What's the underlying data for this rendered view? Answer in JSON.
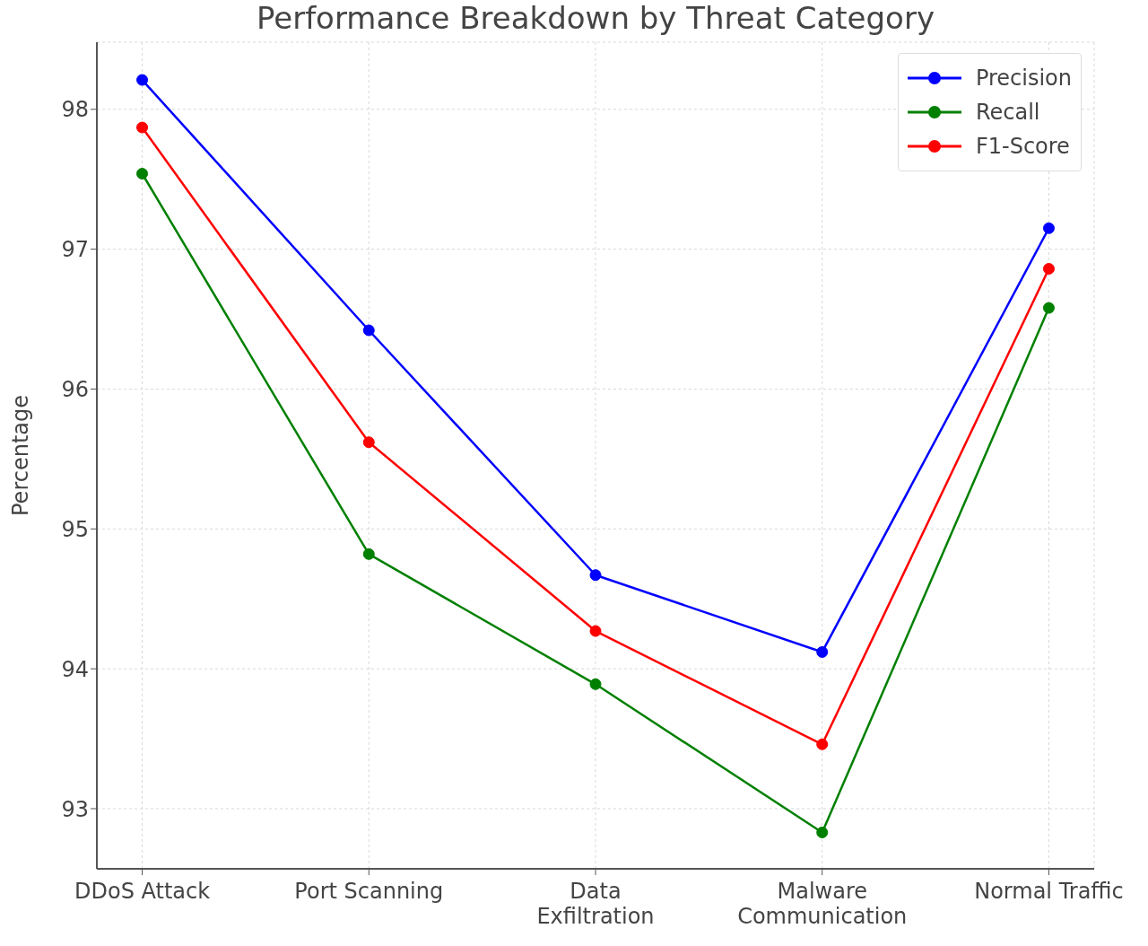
{
  "chart_data": {
    "type": "line",
    "title": "Performance Breakdown by Threat Category",
    "ylabel": "Percentage",
    "categories": [
      "DDoS Attack",
      "Port Scanning",
      "Data Exfiltration",
      "Malware Communication",
      "Normal Traffic"
    ],
    "series": [
      {
        "name": "Precision",
        "color": "#0000ff",
        "values": [
          98.21,
          96.42,
          94.67,
          94.12,
          97.15
        ]
      },
      {
        "name": "Recall",
        "color": "#008000",
        "values": [
          97.54,
          94.82,
          93.89,
          92.83,
          96.58
        ]
      },
      {
        "name": "F1-Score",
        "color": "#ff0000",
        "values": [
          97.87,
          95.62,
          94.27,
          93.46,
          96.86
        ]
      }
    ],
    "ylim": [
      92.57,
      98.48
    ],
    "yticks": [
      93,
      94,
      95,
      96,
      97,
      98
    ],
    "grid": true,
    "legend": "top right",
    "marker": "circle",
    "line_style": "solid"
  }
}
